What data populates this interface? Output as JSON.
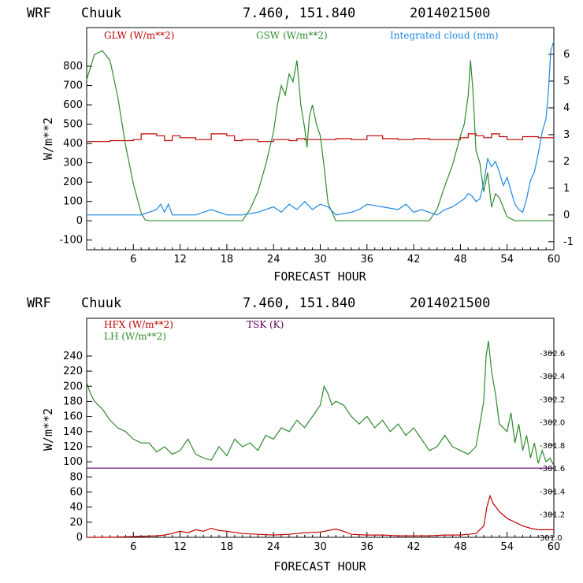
{
  "chart_data": [
    {
      "type": "line",
      "header": {
        "model": "WRF",
        "station": "Chuuk",
        "coords": "7.460, 151.840",
        "date": "2014021500"
      },
      "xlabel": "FORECAST HOUR",
      "ylabel": "W/m**2",
      "xlim": [
        0,
        60
      ],
      "ylim": [
        -150,
        1000
      ],
      "y2lim": [
        -1.3,
        7.0
      ],
      "x_ticks": [
        6,
        12,
        18,
        24,
        30,
        36,
        42,
        48,
        54,
        60
      ],
      "y_ticks": [
        -100,
        0,
        100,
        200,
        300,
        400,
        500,
        600,
        700,
        800
      ],
      "y2_ticks": [
        -1,
        0,
        1,
        2,
        3,
        4,
        5,
        6
      ],
      "grid": false,
      "legend_placement": "top",
      "series": [
        {
          "name": "GLW (W/m**2)",
          "axis": "left",
          "color": "#c00000",
          "step": true,
          "x": [
            0,
            3,
            6,
            7,
            9,
            10,
            11,
            12,
            14,
            16,
            18,
            19,
            20,
            22,
            24,
            26,
            27,
            28,
            30,
            32,
            34,
            36,
            38,
            40,
            42,
            44,
            46,
            48,
            49,
            50,
            51,
            52,
            53,
            54,
            56,
            58,
            60
          ],
          "y": [
            410,
            415,
            420,
            450,
            440,
            415,
            440,
            430,
            420,
            450,
            440,
            415,
            420,
            410,
            420,
            415,
            425,
            420,
            420,
            425,
            420,
            440,
            425,
            420,
            425,
            420,
            420,
            430,
            450,
            440,
            430,
            450,
            435,
            420,
            435,
            430,
            425
          ]
        },
        {
          "name": "GSW (W/m**2)",
          "axis": "left",
          "color": "#2e8b2e",
          "x": [
            0,
            1,
            2,
            3,
            4,
            5,
            6,
            7,
            7.5,
            8,
            9,
            10,
            12,
            14,
            16,
            18,
            20,
            21,
            22,
            23,
            24,
            24.5,
            25,
            25.5,
            26,
            26.5,
            27,
            27.5,
            28,
            28.3,
            28.6,
            29,
            29.5,
            30,
            30.5,
            31,
            32,
            34,
            36,
            38,
            40,
            42,
            44,
            45,
            46,
            47,
            48,
            48.5,
            49,
            49.3,
            49.6,
            50,
            50.5,
            51,
            51.5,
            52,
            52.5,
            53,
            54,
            55,
            56,
            58,
            60
          ],
          "y": [
            730,
            860,
            880,
            830,
            640,
            390,
            190,
            40,
            5,
            0,
            0,
            0,
            0,
            0,
            0,
            0,
            0,
            60,
            150,
            290,
            460,
            600,
            700,
            650,
            760,
            720,
            830,
            600,
            480,
            380,
            540,
            600,
            500,
            440,
            280,
            90,
            0,
            0,
            0,
            0,
            0,
            0,
            0,
            60,
            180,
            290,
            440,
            500,
            650,
            830,
            680,
            360,
            300,
            150,
            250,
            70,
            140,
            120,
            20,
            0,
            0,
            0,
            0
          ]
        },
        {
          "name": "Integrated cloud (mm)",
          "axis": "right",
          "color": "#1e88e5",
          "x": [
            0,
            5,
            7,
            8,
            9,
            9.5,
            10,
            10.5,
            11,
            12,
            14,
            15,
            16,
            17,
            18,
            20,
            22,
            23,
            24,
            25,
            26,
            27,
            28,
            29,
            30,
            31,
            32,
            34,
            35,
            36,
            38,
            40,
            41,
            42,
            43,
            44,
            45,
            46,
            47,
            48,
            48.5,
            49,
            49.5,
            50,
            50.5,
            51,
            51.5,
            52,
            52.5,
            53,
            53.5,
            54,
            54.5,
            55,
            55.5,
            56,
            56.5,
            57,
            57.5,
            58,
            58.5,
            59,
            59.3,
            59.6,
            60
          ],
          "y": [
            0,
            0,
            0,
            0.1,
            0.2,
            0.4,
            0.1,
            0.4,
            0,
            0,
            0,
            0.1,
            0.2,
            0.1,
            0,
            0,
            0.1,
            0.2,
            0.3,
            0.1,
            0.4,
            0.2,
            0.5,
            0.2,
            0.4,
            0.3,
            0,
            0.1,
            0.2,
            0.4,
            0.3,
            0.2,
            0.4,
            0.1,
            0.2,
            0.1,
            0,
            0.2,
            0.3,
            0.5,
            0.6,
            0.8,
            0.7,
            0.5,
            0.6,
            1.2,
            2.1,
            1.8,
            2.0,
            1.6,
            1.1,
            1.4,
            0.9,
            0.4,
            0.2,
            0.1,
            0.6,
            1.3,
            1.6,
            2.3,
            3.1,
            3.6,
            4.6,
            6.1,
            6.5
          ]
        }
      ]
    },
    {
      "type": "line",
      "header": {
        "model": "WRF",
        "station": "Chuuk",
        "coords": "7.460, 151.840",
        "date": "2014021500"
      },
      "xlabel": "FORECAST HOUR",
      "ylabel": "W/m**2",
      "xlim": [
        0,
        60
      ],
      "ylim": [
        0,
        290
      ],
      "y2lim": [
        301.0,
        302.9
      ],
      "x_ticks": [
        6,
        12,
        18,
        24,
        30,
        36,
        42,
        48,
        54,
        60
      ],
      "y_ticks": [
        0,
        20,
        40,
        60,
        80,
        100,
        120,
        140,
        160,
        180,
        200,
        220,
        240
      ],
      "y2_ticks": [
        301.0,
        301.2,
        301.4,
        301.6,
        301.8,
        302.0,
        302.2,
        302.4,
        302.6
      ],
      "y2_tick_labels": [
        "301.0",
        "-301.2",
        "-301.4",
        "-301.6",
        "-301.8",
        "-302.0",
        "-302.2",
        "-302.4",
        "-302.6"
      ],
      "grid": false,
      "legend_placement": "top-left",
      "series": [
        {
          "name": "HFX (W/m**2)",
          "axis": "left",
          "color": "#c00000",
          "x": [
            0,
            3,
            6,
            9,
            10,
            11,
            12,
            13,
            14,
            15,
            16,
            17,
            18,
            20,
            22,
            24,
            26,
            28,
            30,
            32,
            33,
            34,
            36,
            38,
            40,
            42,
            44,
            46,
            48,
            49,
            50,
            51,
            51.4,
            51.8,
            52.2,
            53,
            54,
            55,
            56,
            57,
            58,
            59,
            60
          ],
          "y": [
            0,
            0,
            1,
            2,
            3,
            5,
            8,
            6,
            10,
            8,
            12,
            9,
            8,
            5,
            4,
            3,
            4,
            6,
            7,
            11,
            8,
            4,
            3,
            3,
            2,
            2,
            2,
            3,
            3,
            4,
            5,
            15,
            40,
            55,
            45,
            34,
            25,
            20,
            15,
            12,
            10,
            10,
            10
          ]
        },
        {
          "name": "LH (W/m**2)",
          "axis": "left",
          "color": "#2e8b2e",
          "x": [
            0,
            0.5,
            1,
            2,
            3,
            4,
            5,
            6,
            7,
            8,
            9,
            10,
            11,
            12,
            13,
            14,
            15,
            16,
            17,
            18,
            19,
            20,
            21,
            22,
            23,
            24,
            25,
            26,
            27,
            28,
            29,
            30,
            30.5,
            31,
            31.5,
            32,
            33,
            34,
            35,
            36,
            37,
            38,
            39,
            40,
            41,
            42,
            43,
            44,
            45,
            46,
            47,
            48,
            49,
            50,
            51,
            51.3,
            51.6,
            52,
            52.5,
            53,
            54,
            54.5,
            55,
            55.5,
            56,
            56.5,
            57,
            57.5,
            58,
            58.5,
            59,
            59.5,
            60
          ],
          "y": [
            205,
            190,
            180,
            170,
            155,
            145,
            140,
            130,
            125,
            125,
            113,
            120,
            110,
            115,
            130,
            110,
            105,
            102,
            120,
            108,
            130,
            120,
            125,
            115,
            135,
            130,
            145,
            140,
            155,
            145,
            160,
            175,
            200,
            190,
            175,
            180,
            175,
            160,
            150,
            160,
            145,
            155,
            140,
            150,
            135,
            145,
            130,
            115,
            120,
            135,
            120,
            115,
            110,
            120,
            180,
            240,
            260,
            220,
            190,
            150,
            140,
            165,
            125,
            150,
            115,
            135,
            105,
            125,
            98,
            115,
            100,
            105,
            95
          ]
        },
        {
          "name": "TSK (K)",
          "axis": "right",
          "color": "#5a0060",
          "x": [
            0,
            60
          ],
          "y": [
            301.6,
            301.6
          ]
        }
      ]
    }
  ],
  "legend_colors": {
    "red": "#c00000",
    "green": "#2e8b2e",
    "blue": "#1e88e5",
    "purple": "#5a0060"
  }
}
